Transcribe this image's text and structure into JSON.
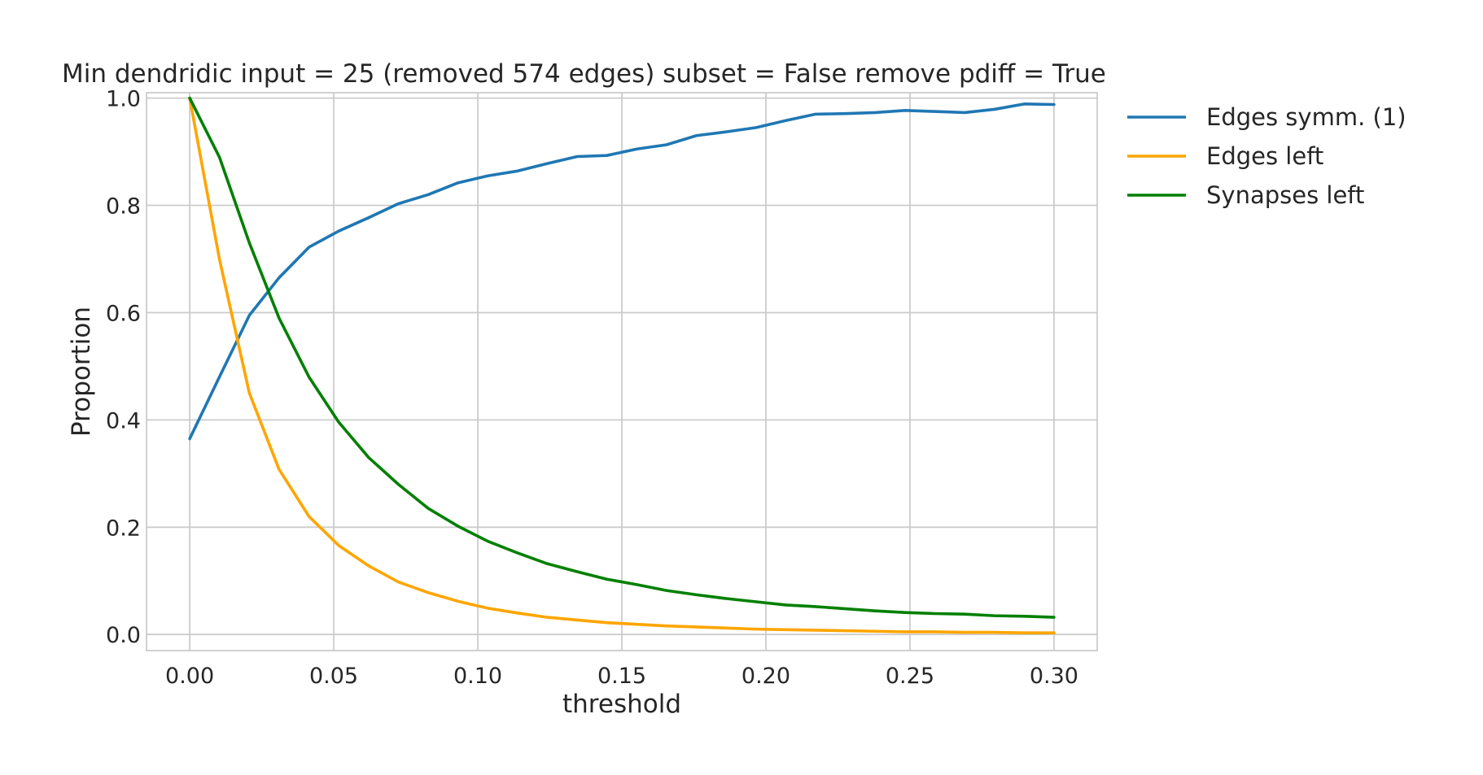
{
  "chart_data": {
    "type": "line",
    "title": "Min dendridic input = 25 (removed 574 edges) subset = False remove pdiff = True",
    "xlabel": "threshold",
    "ylabel": "Proportion",
    "xlim": [
      -0.015,
      0.315
    ],
    "ylim": [
      -0.03,
      1.01
    ],
    "xticks": [
      0.0,
      0.05,
      0.1,
      0.15,
      0.2,
      0.25,
      0.3
    ],
    "xtick_labels": [
      "0.00",
      "0.05",
      "0.10",
      "0.15",
      "0.20",
      "0.25",
      "0.30"
    ],
    "yticks": [
      0.0,
      0.2,
      0.4,
      0.6,
      0.8,
      1.0
    ],
    "ytick_labels": [
      "0.0",
      "0.2",
      "0.4",
      "0.6",
      "0.8",
      "1.0"
    ],
    "grid": true,
    "legend_position": "outside-right",
    "x": [
      0.0,
      0.0103,
      0.0207,
      0.031,
      0.0414,
      0.0517,
      0.0621,
      0.0724,
      0.0828,
      0.0931,
      0.1034,
      0.1138,
      0.1241,
      0.1345,
      0.1448,
      0.1552,
      0.1655,
      0.1759,
      0.1862,
      0.1966,
      0.2069,
      0.2172,
      0.2276,
      0.2379,
      0.2483,
      0.2586,
      0.269,
      0.2793,
      0.2897,
      0.3
    ],
    "series": [
      {
        "name": "Edges symm. (1)",
        "color": "#1f77b4",
        "values": [
          0.365,
          0.48,
          0.595,
          0.665,
          0.722,
          0.752,
          0.777,
          0.803,
          0.82,
          0.842,
          0.855,
          0.864,
          0.878,
          0.891,
          0.893,
          0.905,
          0.913,
          0.93,
          0.937,
          0.945,
          0.958,
          0.97,
          0.971,
          0.973,
          0.977,
          0.975,
          0.973,
          0.979,
          0.989,
          0.988
        ]
      },
      {
        "name": "Edges left",
        "color": "#ffa500",
        "values": [
          1.0,
          0.7,
          0.45,
          0.308,
          0.22,
          0.166,
          0.128,
          0.098,
          0.078,
          0.062,
          0.049,
          0.04,
          0.032,
          0.027,
          0.022,
          0.019,
          0.016,
          0.014,
          0.012,
          0.01,
          0.009,
          0.008,
          0.007,
          0.006,
          0.005,
          0.005,
          0.004,
          0.004,
          0.003,
          0.003
        ]
      },
      {
        "name": "Synapses left",
        "color": "#008000",
        "values": [
          1.0,
          0.89,
          0.73,
          0.59,
          0.48,
          0.396,
          0.33,
          0.28,
          0.235,
          0.202,
          0.174,
          0.152,
          0.132,
          0.117,
          0.103,
          0.093,
          0.082,
          0.074,
          0.067,
          0.061,
          0.055,
          0.052,
          0.048,
          0.044,
          0.041,
          0.039,
          0.038,
          0.035,
          0.034,
          0.032
        ]
      }
    ]
  }
}
